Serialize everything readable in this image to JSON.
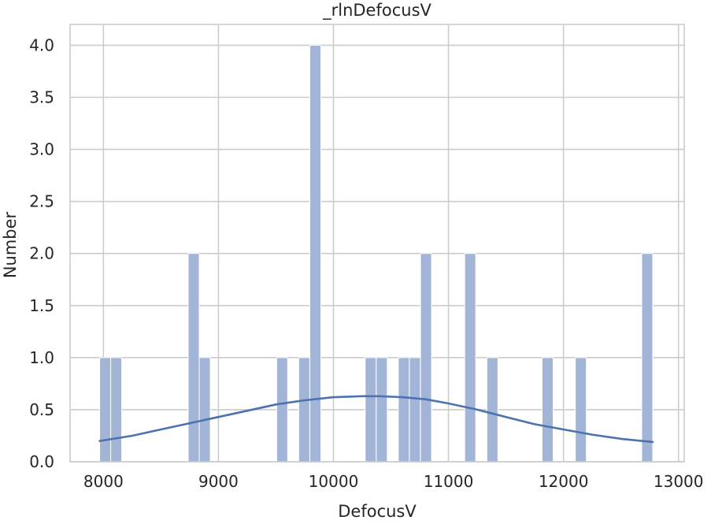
{
  "chart_data": {
    "type": "bar",
    "title": "_rlnDefocusV",
    "xlabel": "DefocusV",
    "ylabel": "Number",
    "xlim": [
      7710,
      13050
    ],
    "ylim": [
      0,
      4.2
    ],
    "grid": true,
    "xticks": [
      {
        "value": 8000,
        "label": "8000"
      },
      {
        "value": 9000,
        "label": "9000"
      },
      {
        "value": 10000,
        "label": "10000"
      },
      {
        "value": 11000,
        "label": "11000"
      },
      {
        "value": 12000,
        "label": "12000"
      },
      {
        "value": 13000,
        "label": "13000"
      }
    ],
    "yticks": [
      {
        "value": 0.0,
        "label": "0.0"
      },
      {
        "value": 0.5,
        "label": "0.5"
      },
      {
        "value": 1.0,
        "label": "1.0"
      },
      {
        "value": 1.5,
        "label": "1.5"
      },
      {
        "value": 2.0,
        "label": "2.0"
      },
      {
        "value": 2.5,
        "label": "2.5"
      },
      {
        "value": 3.0,
        "label": "3.0"
      },
      {
        "value": 3.5,
        "label": "3.5"
      },
      {
        "value": 4.0,
        "label": "4.0"
      }
    ],
    "bin_width": 96,
    "bins": [
      {
        "start": 7967,
        "count": 1
      },
      {
        "start": 8063,
        "count": 1
      },
      {
        "start": 8737,
        "count": 2
      },
      {
        "start": 8833,
        "count": 1
      },
      {
        "start": 9506,
        "count": 1
      },
      {
        "start": 9698,
        "count": 1
      },
      {
        "start": 9795,
        "count": 4
      },
      {
        "start": 10276,
        "count": 1
      },
      {
        "start": 10372,
        "count": 1
      },
      {
        "start": 10564,
        "count": 1
      },
      {
        "start": 10660,
        "count": 1
      },
      {
        "start": 10757,
        "count": 2
      },
      {
        "start": 11141,
        "count": 2
      },
      {
        "start": 11334,
        "count": 1
      },
      {
        "start": 11814,
        "count": 1
      },
      {
        "start": 12103,
        "count": 1
      },
      {
        "start": 12680,
        "count": 2
      }
    ],
    "kde_curve": {
      "x": [
        7967,
        8250,
        8500,
        8750,
        9000,
        9250,
        9500,
        9750,
        10000,
        10250,
        10400,
        10600,
        10800,
        11000,
        11250,
        11500,
        11750,
        12000,
        12250,
        12500,
        12776
      ],
      "y": [
        0.2,
        0.25,
        0.31,
        0.37,
        0.43,
        0.49,
        0.55,
        0.59,
        0.62,
        0.63,
        0.63,
        0.62,
        0.6,
        0.56,
        0.5,
        0.43,
        0.36,
        0.31,
        0.26,
        0.22,
        0.19
      ]
    },
    "colors": {
      "bar_fill": "#a3b5d6",
      "bar_stroke": "#ffffff",
      "kde_line": "#4c72b0",
      "grid": "#cccccc",
      "frame": "#cccccc",
      "background": "#ffffff"
    }
  }
}
